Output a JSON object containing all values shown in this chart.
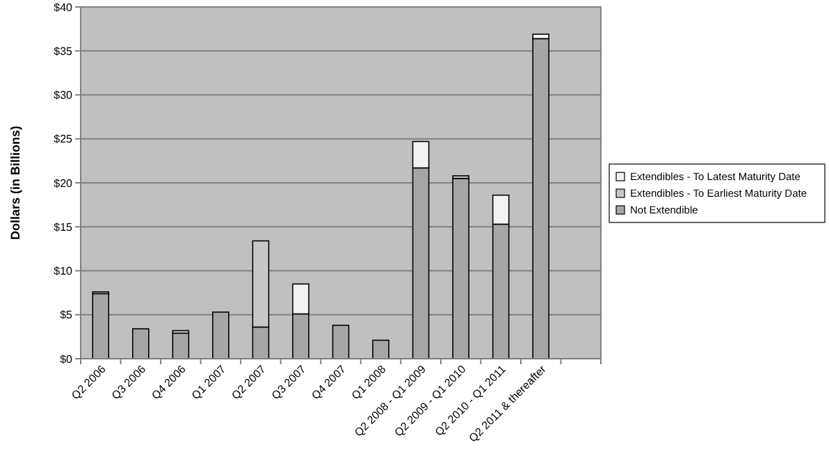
{
  "chart_data": {
    "type": "bar",
    "stacked": true,
    "ylabel": "Dollars (in Billions)",
    "categories": [
      "Q2 2006",
      "Q3 2006",
      "Q4 2006",
      "Q1 2007",
      "Q2 2007",
      "Q3 2007",
      "Q4 2007",
      "Q1 2008",
      "Q2 2008 - Q1 2009",
      "Q2 2009 - Q1 2010",
      "Q2 2010 - Q1 2011",
      "Q2 2011 & thereafter",
      null
    ],
    "series": [
      {
        "name": "Not Extendible",
        "color": "#a6a6a6",
        "values": [
          7.4,
          3.4,
          2.9,
          5.3,
          3.6,
          5.1,
          3.8,
          2.1,
          21.7,
          20.5,
          15.3,
          36.4,
          null
        ]
      },
      {
        "name": "Extendibles - To Earliest Maturity Date",
        "color": "#c8c8c8",
        "values": [
          0.2,
          0,
          0.3,
          0,
          9.8,
          0,
          0,
          0,
          0,
          0.3,
          0,
          0,
          null
        ]
      },
      {
        "name": "Extendibles - To Latest Maturity Date",
        "color": "#f2f2f2",
        "values": [
          0,
          0,
          0,
          0,
          0,
          3.4,
          0,
          0,
          3.0,
          0,
          3.3,
          0.5,
          null
        ]
      }
    ],
    "ylim": [
      0,
      40
    ],
    "yticks": [
      {
        "value": 0,
        "label": "$0"
      },
      {
        "value": 5,
        "label": "$5"
      },
      {
        "value": 10,
        "label": "$10"
      },
      {
        "value": 15,
        "label": "$15"
      },
      {
        "value": 20,
        "label": "$20"
      },
      {
        "value": 25,
        "label": "$25"
      },
      {
        "value": 30,
        "label": "$30"
      },
      {
        "value": 35,
        "label": "$35"
      },
      {
        "value": 40,
        "label": "$40"
      }
    ],
    "grid": "y",
    "legend": "right"
  }
}
